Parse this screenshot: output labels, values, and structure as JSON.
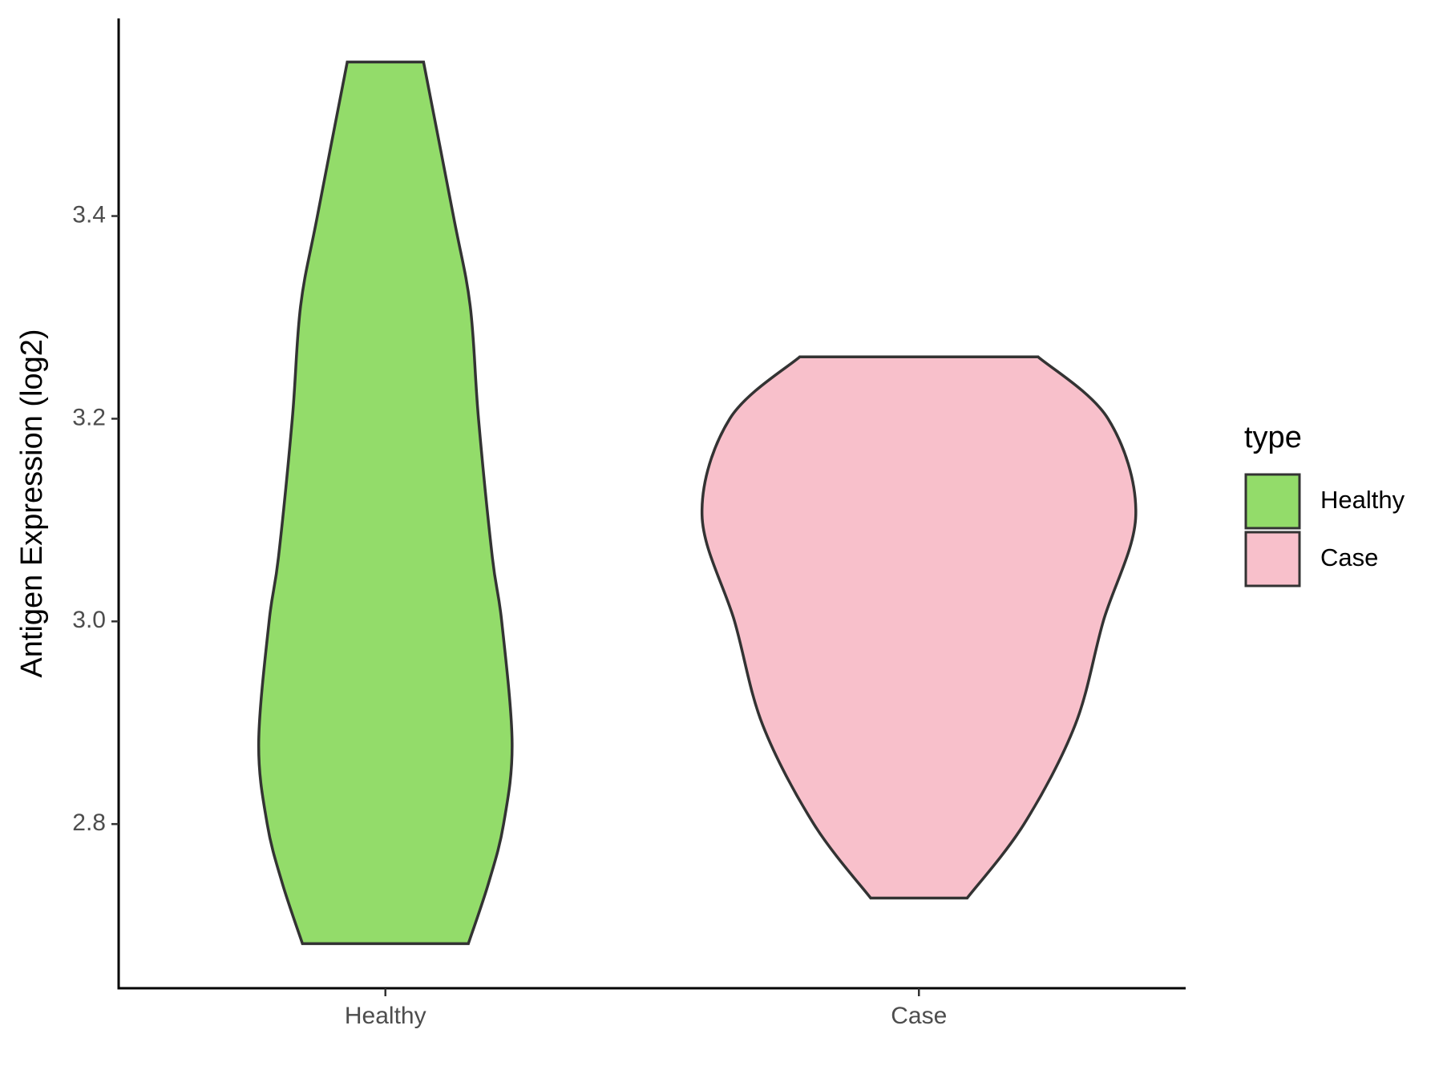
{
  "chart_data": {
    "type": "violin",
    "y_label": "Antigen Expression (log2)",
    "categories": [
      "Healthy",
      "Case"
    ],
    "legend_title": "type",
    "series": [
      {
        "name": "Healthy",
        "color": "#93dc6a",
        "y": [
          3.552,
          3.4,
          3.311,
          3.2,
          3.063,
          3.0,
          2.88,
          2.8,
          2.742,
          2.682
        ],
        "widths": [
          0.143,
          0.255,
          0.318,
          0.349,
          0.401,
          0.436,
          0.475,
          0.443,
          0.387,
          0.311
        ]
      },
      {
        "name": "Case",
        "color": "#f8c0cb",
        "y": [
          3.261,
          3.2,
          3.105,
          3.0,
          2.898,
          2.8,
          2.727
        ],
        "widths": [
          0.447,
          0.709,
          0.813,
          0.691,
          0.586,
          0.394,
          0.181
        ]
      }
    ],
    "ylim": [
      2.638,
      3.595
    ],
    "yticks": [
      {
        "value": 2.8,
        "label": "2.8"
      },
      {
        "value": 3.0,
        "label": "3.0"
      },
      {
        "value": 3.2,
        "label": "3.2"
      },
      {
        "value": 3.4,
        "label": "3.4"
      }
    ],
    "grid": false,
    "legend_position": "right"
  }
}
